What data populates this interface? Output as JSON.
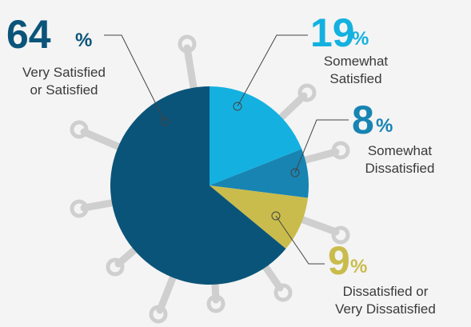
{
  "chart_data": {
    "type": "pie",
    "categories": [
      [
        "Very Satisfied",
        "or Satisfied"
      ],
      [
        "Somewhat",
        "Satisfied"
      ],
      [
        "Somewhat",
        "Dissatisfied"
      ],
      [
        "Dissatisfied or",
        "Very Dissatisfied"
      ]
    ],
    "values": [
      64,
      19,
      8,
      9
    ],
    "unit": "%",
    "colors": [
      "#0b5479",
      "#14b1e0",
      "#1884b2",
      "#c9bc4c"
    ]
  }
}
